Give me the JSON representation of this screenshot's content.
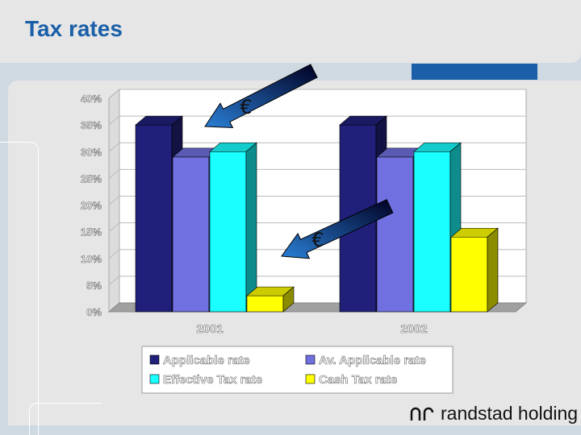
{
  "header": {
    "title": "Tax rates"
  },
  "logo": {
    "text": "randstad holding"
  },
  "colors": {
    "applicable": "#20207a",
    "av_applicable": "#7070e0",
    "effective": "#1affff",
    "cash": "#ffff00",
    "title": "#1a5fa8"
  },
  "annotations": [
    {
      "symbol": "€",
      "icon": "euro-arrow-icon"
    },
    {
      "symbol": "€",
      "icon": "euro-arrow-icon"
    }
  ],
  "chart_data": {
    "type": "bar",
    "categories": [
      "2001",
      "2002"
    ],
    "series": [
      {
        "name": "Applicable rate",
        "values": [
          35,
          35
        ]
      },
      {
        "name": "Av. Applicable rate",
        "values": [
          29,
          29
        ]
      },
      {
        "name": "Effective Tax rate",
        "values": [
          30,
          30
        ]
      },
      {
        "name": "Cash Tax rate",
        "values": [
          3,
          14
        ]
      }
    ],
    "yticks": [
      "40%",
      "35%",
      "30%",
      "25%",
      "20%",
      "15%",
      "10%",
      "5%",
      "0%"
    ],
    "ylim": [
      0,
      40
    ],
    "grid": true,
    "legend": "bottom",
    "three_d": true
  }
}
